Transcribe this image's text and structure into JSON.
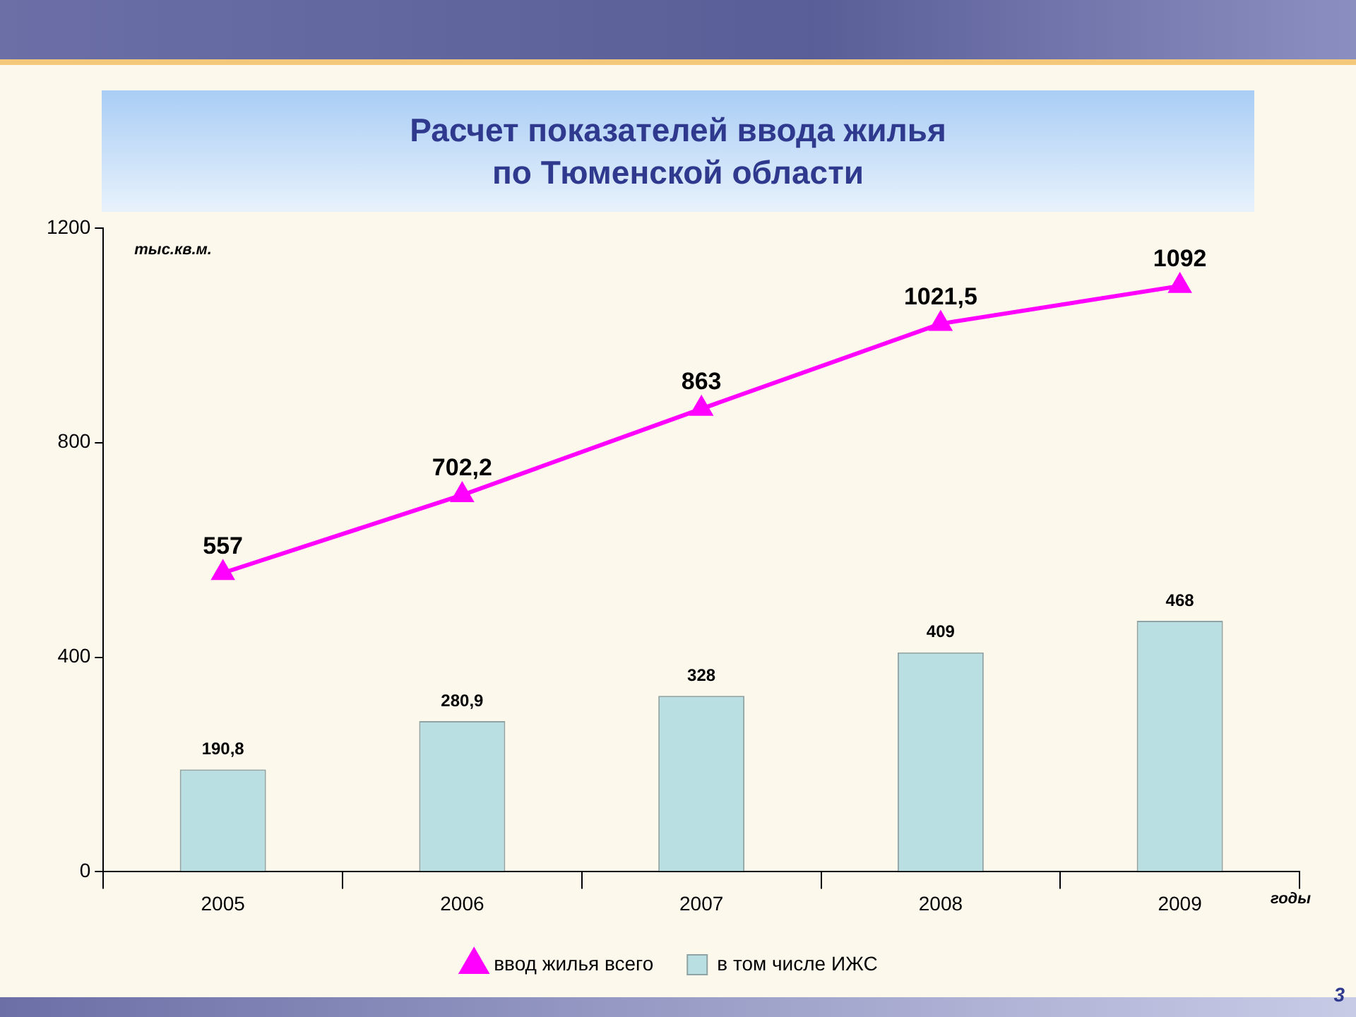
{
  "chart_data": {
    "type": "bar",
    "title": "Расчет показателей ввода жилья\nпо Тюменской области",
    "xlabel": "годы",
    "ylabel": "тыс.кв.м.",
    "categories": [
      "2005",
      "2006",
      "2007",
      "2008",
      "2009"
    ],
    "series": [
      {
        "name": "ввод жилья всего",
        "type": "line",
        "color": "#ff00ff",
        "values": [
          557,
          702.2,
          863,
          1021.5,
          1092
        ],
        "value_labels": [
          "557",
          "702,2",
          "863",
          "1021,5",
          "1092"
        ]
      },
      {
        "name": "в том числе ИЖС",
        "color": "#b9dfe3",
        "values": [
          190.8,
          280.9,
          328,
          409,
          468
        ],
        "value_labels": [
          "190,8",
          "280,9",
          "328",
          "409",
          "468"
        ]
      }
    ],
    "ylim": [
      0,
      1200
    ],
    "yticks": [
      0,
      400,
      800,
      1200
    ],
    "grid": false,
    "legend": "bottom",
    "marker": "triangle",
    "annotations": [
      "3"
    ]
  }
}
